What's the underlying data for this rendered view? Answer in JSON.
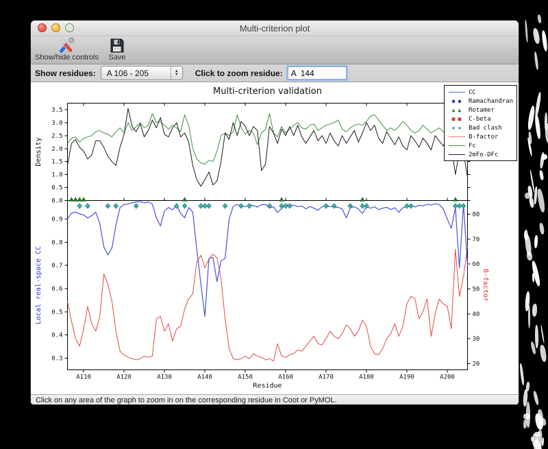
{
  "window": {
    "title": "Multi-criterion plot"
  },
  "toolbar": {
    "show_hide_label": "Show/hide controls",
    "save_label": "Save"
  },
  "controls": {
    "show_residues_label": "Show residues:",
    "residue_range_value": "A 106 - 205",
    "zoom_residue_label": "Click to zoom residue:",
    "zoom_residue_value": "A  144"
  },
  "status": {
    "message": "Click on any area of the graph to zoom in on the corresponding residue in Coot or PyMOL."
  },
  "legend": {
    "items": [
      {
        "symbol": "line",
        "color": "#5b6ade",
        "label": "CC"
      },
      {
        "symbol": "circles",
        "color": "#2741cc",
        "label": "Ramachandran"
      },
      {
        "symbol": "triangles",
        "color": "#2a7a2a",
        "label": "Rotamer"
      },
      {
        "symbol": "squares",
        "color": "#d9372a",
        "label": "C-beta"
      },
      {
        "symbol": "diamonds",
        "color": "#3fb0ac",
        "label": "Bad clash"
      },
      {
        "symbol": "line",
        "color": "#ef8272",
        "label": "B-factor"
      },
      {
        "symbol": "line",
        "color": "#3f8f3f",
        "label": "Fc"
      },
      {
        "symbol": "line",
        "color": "#222222",
        "label": "2mFo-DFc"
      }
    ]
  },
  "chart_data": {
    "type": "line",
    "title": "Multi-criterion validation",
    "xlabel": "Residue",
    "x_start": 106,
    "x_end": 205,
    "x_tick_prefix": "A",
    "x_ticks": [
      110,
      120,
      130,
      140,
      150,
      160,
      170,
      180,
      190,
      200
    ],
    "top_panel": {
      "ylabel": "Density",
      "ylim": [
        0,
        3.75
      ],
      "yticks": [
        0.0,
        0.5,
        1.0,
        1.5,
        2.0,
        2.5,
        3.0,
        3.5
      ],
      "series": [
        {
          "name": "Fc",
          "color": "#3f8f3f",
          "values": [
            2.2,
            2.4,
            2.45,
            2.25,
            2.4,
            2.45,
            2.5,
            2.65,
            2.7,
            2.6,
            2.55,
            2.45,
            2.65,
            2.8,
            2.6,
            3.0,
            2.7,
            2.85,
            3.0,
            2.8,
            2.9,
            3.35,
            3.0,
            3.05,
            2.9,
            2.75,
            2.9,
            2.8,
            2.65,
            3.3,
            2.9,
            2.0,
            1.6,
            1.45,
            1.4,
            1.55,
            1.5,
            1.9,
            2.5,
            2.6,
            2.5,
            2.65,
            3.3,
            2.8,
            2.55,
            2.7,
            2.6,
            2.15,
            2.6,
            2.75,
            3.35,
            2.6,
            2.45,
            2.85,
            2.6,
            2.75,
            2.9,
            3.0,
            2.8,
            2.75,
            2.9,
            2.95,
            2.7,
            2.8,
            2.9,
            2.95,
            3.0,
            3.1,
            2.75,
            2.65,
            2.8,
            2.9,
            2.95,
            2.9,
            3.05,
            3.25,
            3.3,
            3.1,
            2.9,
            2.7,
            2.8,
            2.7,
            2.85,
            3.05,
            2.9,
            2.7,
            2.6,
            2.7,
            2.9,
            2.75,
            2.6,
            2.7,
            2.8,
            2.65,
            2.55,
            2.7,
            2.85,
            2.7,
            2.5,
            2.2
          ]
        },
        {
          "name": "2mFo-DFc",
          "color": "#1a1a1a",
          "values": [
            1.35,
            2.2,
            2.35,
            2.05,
            1.9,
            1.6,
            1.75,
            2.3,
            2.3,
            2.05,
            1.7,
            1.5,
            1.35,
            2.05,
            2.55,
            3.55,
            2.85,
            2.65,
            2.95,
            2.45,
            2.7,
            3.1,
            2.8,
            3.2,
            2.55,
            2.45,
            2.8,
            3.0,
            2.45,
            2.6,
            2.25,
            1.35,
            0.8,
            0.55,
            0.8,
            1.1,
            0.6,
            0.75,
            1.5,
            2.6,
            2.35,
            3.0,
            2.5,
            3.05,
            2.85,
            2.5,
            2.85,
            2.7,
            1.15,
            1.4,
            2.85,
            2.6,
            2.2,
            2.75,
            2.5,
            2.85,
            2.5,
            2.9,
            2.45,
            2.2,
            2.45,
            2.7,
            2.3,
            2.5,
            2.2,
            2.6,
            2.3,
            2.1,
            2.5,
            2.2,
            2.45,
            2.7,
            2.25,
            2.6,
            3.0,
            2.7,
            2.9,
            2.4,
            2.2,
            2.65,
            2.4,
            2.15,
            2.45,
            2.1,
            1.95,
            2.5,
            2.3,
            2.05,
            2.4,
            2.2,
            1.95,
            2.5,
            2.3,
            2.1,
            2.4,
            2.15,
            1.0,
            1.9,
            1.85,
            0.9
          ]
        }
      ]
    },
    "bottom_panel": {
      "ylabel_left": "Local real-space CC",
      "ylabel_left_color": "#2a35cc",
      "ylim_left": [
        0.25,
        0.98
      ],
      "yticks_left": [
        0.3,
        0.4,
        0.5,
        0.6,
        0.7,
        0.8,
        0.9
      ],
      "ylabel_right": "B-factor",
      "ylabel_right_color": "#d3362b",
      "ylim_right": [
        17.5,
        85.5
      ],
      "yticks_right": [
        20,
        30,
        40,
        50,
        60,
        70,
        80
      ],
      "series_left": {
        "name": "CC",
        "color": "#4553d6",
        "values": [
          0.9,
          0.925,
          0.93,
          0.922,
          0.918,
          0.905,
          0.915,
          0.93,
          0.88,
          0.78,
          0.745,
          0.775,
          0.875,
          0.95,
          0.962,
          0.965,
          0.97,
          0.974,
          0.975,
          0.97,
          0.974,
          0.965,
          0.905,
          0.87,
          0.935,
          0.95,
          0.94,
          0.96,
          0.925,
          0.905,
          0.95,
          0.93,
          0.77,
          0.62,
          0.48,
          0.73,
          0.735,
          0.63,
          0.72,
          0.73,
          0.9,
          0.955,
          0.963,
          0.958,
          0.953,
          0.962,
          0.958,
          0.952,
          0.962,
          0.963,
          0.948,
          0.953,
          0.928,
          0.945,
          0.963,
          0.96,
          0.96,
          0.953,
          0.957,
          0.944,
          0.954,
          0.947,
          0.938,
          0.953,
          0.956,
          0.954,
          0.953,
          0.95,
          0.944,
          0.905,
          0.948,
          0.953,
          0.944,
          0.924,
          0.953,
          0.947,
          0.953,
          0.941,
          0.947,
          0.951,
          0.941,
          0.949,
          0.929,
          0.949,
          0.954,
          0.962,
          0.952,
          0.959,
          0.957,
          0.963,
          0.961,
          0.966,
          0.963,
          0.944,
          0.9,
          0.86,
          0.95,
          0.69,
          0.963,
          0.7
        ]
      },
      "series_right": {
        "name": "B-factor",
        "color": "#e04b40",
        "values": [
          45,
          37,
          30,
          27,
          34,
          43,
          36,
          33,
          39,
          56,
          52,
          45,
          33,
          25,
          23.5,
          22.5,
          22,
          21.5,
          22,
          23,
          22.5,
          23,
          38,
          39,
          33,
          36,
          29,
          34,
          35,
          42,
          46,
          48,
          61,
          63.5,
          58.5,
          62,
          64,
          62.5,
          54,
          38,
          26,
          22,
          21.5,
          22,
          23,
          22,
          24,
          23,
          22.5,
          21.5,
          22,
          21,
          28,
          23,
          22.5,
          23.5,
          24,
          25.5,
          25,
          27,
          29,
          31,
          28,
          27.5,
          30,
          33,
          31,
          30,
          32,
          35.5,
          34,
          31,
          33,
          37.5,
          35,
          27,
          24,
          23.5,
          26,
          30,
          32,
          36,
          31,
          35,
          44,
          47,
          46,
          38,
          41,
          46,
          31,
          40,
          46,
          44,
          43,
          34,
          66,
          47,
          55,
          67
        ]
      },
      "markers": {
        "bad_clash_color": "#3fb0ac",
        "bad_clash_residues": [
          109,
          111,
          116,
          118,
          123,
          133,
          135,
          139,
          140,
          141,
          145,
          149,
          151,
          156,
          159,
          160,
          161,
          170,
          172,
          176,
          179,
          180,
          190,
          191,
          202,
          203,
          204
        ],
        "rotamer_color": "#2a7a2a",
        "rotamer_residues": [
          107,
          108,
          109,
          110,
          135,
          159,
          179,
          202
        ]
      }
    }
  }
}
